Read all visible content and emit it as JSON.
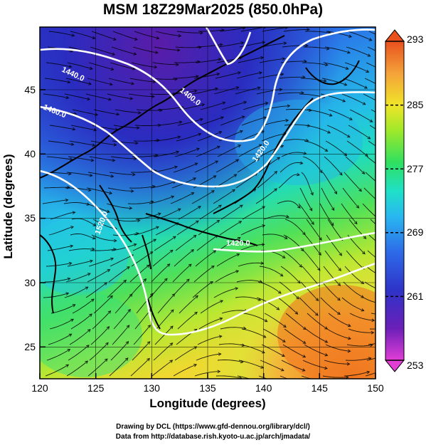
{
  "title": "MSM 18Z29Mar2025 (850.0hPa)",
  "x_axis": {
    "label": "Longitude (degrees)",
    "ticks": [
      "120",
      "125",
      "130",
      "135",
      "140",
      "145",
      "150"
    ]
  },
  "y_axis": {
    "label": "Latitude  (degrees)",
    "ticks": [
      "25",
      "30",
      "35",
      "40",
      "45"
    ]
  },
  "colorbar": {
    "ticks": [
      "253",
      "261",
      "269",
      "277",
      "285",
      "293"
    ],
    "colors": [
      "#e23ed6",
      "#6b1fb8",
      "#2e33c8",
      "#2d6be8",
      "#29b7f0",
      "#1fe0c8",
      "#2fe060",
      "#9fe82a",
      "#f0e428",
      "#f4a23a",
      "#e8501e"
    ]
  },
  "contour_labels": [
    "1440.0",
    "1400.0",
    "1460.0",
    "1420.0",
    "1520.0",
    "1420.0"
  ],
  "credits": [
    "Drawing by DCL (https://www.gfd-dennou.org/library/dcl/)",
    "Data from http://database.rish.kyoto-u.ac.jp/arch/jmadata/"
  ]
}
